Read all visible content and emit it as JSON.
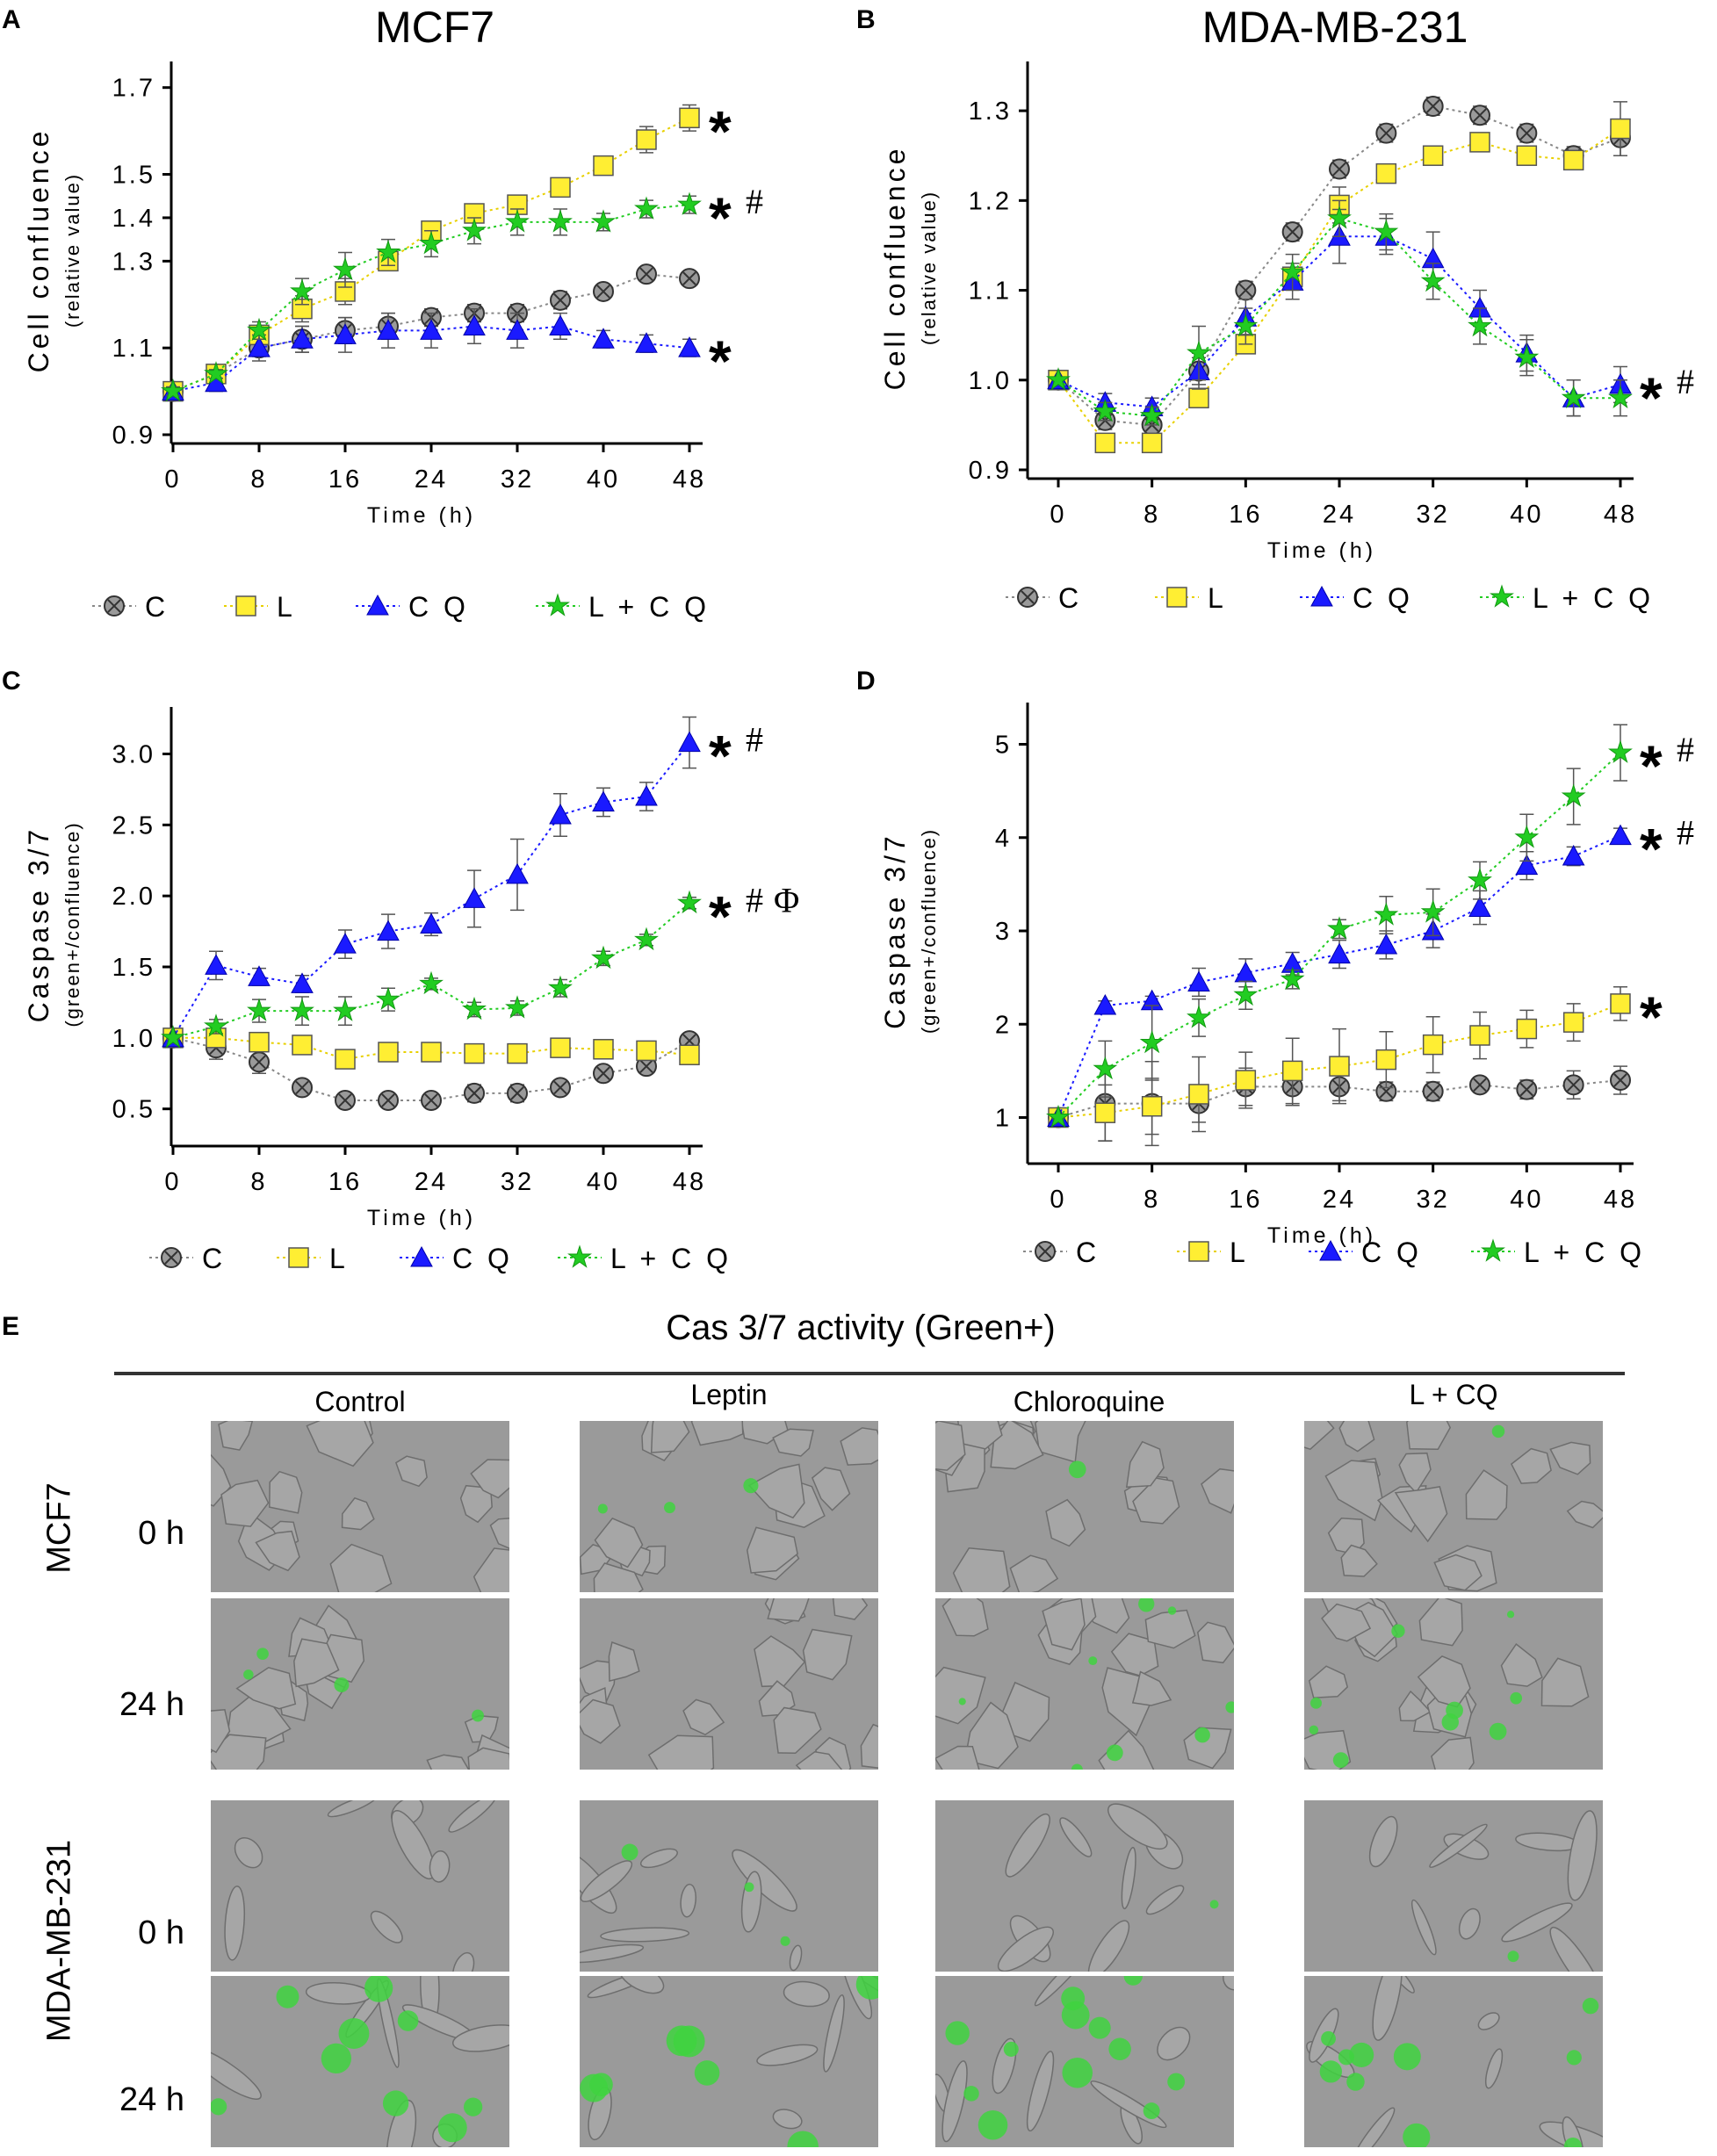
{
  "chart_data": [
    {
      "panel": "A",
      "type": "line",
      "title": "MCF7",
      "ylabel": "Cell confluence",
      "ylabel_sub": "(relative value)",
      "xlabel": "Time (h)",
      "xlim": [
        0,
        48
      ],
      "ylim": [
        0.9,
        1.75
      ],
      "xticks": [
        0,
        8,
        16,
        24,
        32,
        40,
        48
      ],
      "xtick_labels": [
        "0",
        "8",
        "16",
        "24",
        "32",
        "40",
        "48"
      ],
      "yticks": [
        0.9,
        1.1,
        1.3,
        1.4,
        1.5,
        1.7
      ],
      "ytick_labels": [
        "0.9",
        "1.1",
        "1.3",
        "1.4",
        "1.5",
        "1.7"
      ],
      "x": [
        0,
        4,
        8,
        12,
        16,
        20,
        24,
        28,
        32,
        36,
        40,
        44,
        48
      ],
      "series": [
        {
          "name": "C",
          "marker": "circle-x",
          "color": "#888888",
          "values": [
            1.0,
            1.04,
            1.1,
            1.12,
            1.14,
            1.15,
            1.17,
            1.18,
            1.18,
            1.21,
            1.23,
            1.27,
            1.26
          ],
          "err": [
            0.01,
            0.01,
            0.02,
            0.03,
            0.03,
            0.03,
            0.02,
            0.02,
            0.02,
            0.02,
            0.01,
            0.01,
            0.01
          ]
        },
        {
          "name": "L",
          "marker": "square",
          "color": "#ffee33",
          "values": [
            1.0,
            1.04,
            1.13,
            1.19,
            1.23,
            1.3,
            1.37,
            1.41,
            1.43,
            1.47,
            1.52,
            1.58,
            1.63
          ],
          "err": [
            0.01,
            0.01,
            0.02,
            0.03,
            0.03,
            0.02,
            0.02,
            0.01,
            0.01,
            0.01,
            0.02,
            0.03,
            0.03
          ]
        },
        {
          "name": "CQ",
          "marker": "triangle",
          "color": "#1a1aff",
          "values": [
            1.0,
            1.02,
            1.1,
            1.12,
            1.13,
            1.14,
            1.14,
            1.15,
            1.14,
            1.15,
            1.12,
            1.11,
            1.1
          ],
          "err": [
            0.01,
            0.02,
            0.03,
            0.03,
            0.04,
            0.04,
            0.04,
            0.04,
            0.04,
            0.03,
            0.02,
            0.02,
            0.02
          ]
        },
        {
          "name": "L + CQ",
          "marker": "star",
          "color": "#22cc22",
          "values": [
            1.0,
            1.04,
            1.14,
            1.23,
            1.28,
            1.32,
            1.34,
            1.37,
            1.39,
            1.39,
            1.39,
            1.42,
            1.43
          ],
          "err": [
            0.01,
            0.01,
            0.02,
            0.03,
            0.04,
            0.03,
            0.03,
            0.03,
            0.03,
            0.03,
            0.02,
            0.02,
            0.02
          ]
        }
      ],
      "annotations": [
        {
          "text": "*",
          "near_series": "L"
        },
        {
          "text": "* #",
          "near_series": "L + CQ"
        },
        {
          "text": "*",
          "near_series": "CQ"
        }
      ]
    },
    {
      "panel": "B",
      "type": "line",
      "title": "MDA-MB-231",
      "ylabel": "Cell confluence",
      "ylabel_sub": "(relative value)",
      "xlabel": "Time (h)",
      "xlim": [
        0,
        48
      ],
      "ylim": [
        0.9,
        1.35
      ],
      "xticks": [
        0,
        8,
        16,
        24,
        32,
        40,
        48
      ],
      "xtick_labels": [
        "0",
        "8",
        "16",
        "24",
        "32",
        "40",
        "48"
      ],
      "yticks": [
        0.9,
        1.0,
        1.1,
        1.2,
        1.3
      ],
      "ytick_labels": [
        "0.9",
        "1.0",
        "1.1",
        "1.2",
        "1.3"
      ],
      "x": [
        0,
        4,
        8,
        12,
        16,
        20,
        24,
        28,
        32,
        36,
        40,
        44,
        48
      ],
      "series": [
        {
          "name": "C",
          "marker": "circle-x",
          "color": "#888888",
          "values": [
            1.0,
            0.955,
            0.95,
            1.01,
            1.1,
            1.165,
            1.235,
            1.275,
            1.305,
            1.295,
            1.275,
            1.25,
            1.27
          ],
          "err": [
            0.005,
            0.01,
            0.01,
            0.015,
            0.01,
            0.01,
            0.01,
            0.01,
            0.01,
            0.01,
            0.01,
            0.01,
            0.02
          ]
        },
        {
          "name": "L",
          "marker": "square",
          "color": "#ffee33",
          "values": [
            1.0,
            0.93,
            0.93,
            0.98,
            1.04,
            1.115,
            1.195,
            1.23,
            1.25,
            1.265,
            1.25,
            1.245,
            1.28
          ],
          "err": [
            0.005,
            0.01,
            0.01,
            0.01,
            0.01,
            0.01,
            0.02,
            0.01,
            0.01,
            0.01,
            0.01,
            0.01,
            0.03
          ]
        },
        {
          "name": "CQ",
          "marker": "triangle",
          "color": "#1a1aff",
          "values": [
            1.0,
            0.975,
            0.97,
            1.01,
            1.07,
            1.11,
            1.16,
            1.16,
            1.135,
            1.08,
            1.03,
            0.98,
            0.995
          ],
          "err": [
            0.005,
            0.01,
            0.01,
            0.02,
            0.02,
            0.02,
            0.03,
            0.02,
            0.03,
            0.02,
            0.02,
            0.02,
            0.02
          ]
        },
        {
          "name": "L + CQ",
          "marker": "star",
          "color": "#22cc22",
          "values": [
            1.0,
            0.965,
            0.96,
            1.03,
            1.06,
            1.12,
            1.18,
            1.165,
            1.11,
            1.06,
            1.025,
            0.98,
            0.98
          ],
          "err": [
            0.005,
            0.01,
            0.01,
            0.03,
            0.02,
            0.02,
            0.02,
            0.02,
            0.02,
            0.02,
            0.02,
            0.02,
            0.02
          ]
        }
      ],
      "annotations": [
        {
          "text": "* #",
          "near_series": "CQ"
        }
      ]
    },
    {
      "panel": "C",
      "type": "line",
      "title": "",
      "ylabel": "Caspase 3/7",
      "ylabel_sub": "(green+/confluence)",
      "xlabel": "Time (h)",
      "xlim": [
        0,
        48
      ],
      "ylim": [
        0.3,
        3.3
      ],
      "xticks": [
        0,
        8,
        16,
        24,
        32,
        40,
        48
      ],
      "xtick_labels": [
        "0",
        "8",
        "16",
        "24",
        "32",
        "40",
        "48"
      ],
      "yticks": [
        0.5,
        1.0,
        1.5,
        2.0,
        2.5,
        3.0
      ],
      "ytick_labels": [
        "0.5",
        "1.0",
        "1.5",
        "2.0",
        "2.5",
        "3.0"
      ],
      "x": [
        0,
        4,
        8,
        12,
        16,
        20,
        24,
        28,
        32,
        36,
        40,
        44,
        48
      ],
      "series": [
        {
          "name": "C",
          "marker": "circle-x",
          "color": "#888888",
          "values": [
            1.0,
            0.93,
            0.83,
            0.65,
            0.56,
            0.56,
            0.56,
            0.61,
            0.61,
            0.65,
            0.75,
            0.8,
            0.98
          ],
          "err": [
            0.01,
            0.08,
            0.08,
            0.05,
            0.03,
            0.03,
            0.04,
            0.06,
            0.06,
            0.04,
            0.03,
            0.03,
            0.05
          ]
        },
        {
          "name": "L",
          "marker": "square",
          "color": "#ffee33",
          "values": [
            1.0,
            1.0,
            0.97,
            0.95,
            0.85,
            0.9,
            0.9,
            0.89,
            0.89,
            0.93,
            0.92,
            0.91,
            0.88
          ],
          "err": [
            0.01,
            0.03,
            0.03,
            0.05,
            0.04,
            0.04,
            0.04,
            0.04,
            0.04,
            0.04,
            0.04,
            0.04,
            0.04
          ]
        },
        {
          "name": "CQ",
          "marker": "triangle",
          "color": "#1a1aff",
          "values": [
            1.0,
            1.51,
            1.43,
            1.38,
            1.66,
            1.75,
            1.8,
            1.98,
            2.15,
            2.57,
            2.66,
            2.7,
            3.08
          ],
          "err": [
            0.01,
            0.1,
            0.06,
            0.06,
            0.1,
            0.12,
            0.08,
            0.2,
            0.25,
            0.15,
            0.1,
            0.1,
            0.18
          ]
        },
        {
          "name": "L + CQ",
          "marker": "star",
          "color": "#22cc22",
          "values": [
            1.0,
            1.08,
            1.19,
            1.19,
            1.19,
            1.27,
            1.38,
            1.2,
            1.21,
            1.35,
            1.56,
            1.69,
            1.95
          ],
          "err": [
            0.01,
            0.05,
            0.08,
            0.1,
            0.1,
            0.08,
            0.04,
            0.05,
            0.05,
            0.06,
            0.05,
            0.04,
            0.04
          ]
        }
      ],
      "annotations": [
        {
          "text": "* #",
          "near_series": "CQ"
        },
        {
          "text": "* # Φ",
          "near_series": "L + CQ"
        }
      ]
    },
    {
      "panel": "D",
      "type": "line",
      "title": "",
      "ylabel": "Caspase 3/7",
      "ylabel_sub": "(green+/confluence)",
      "xlabel": "Time (h)",
      "xlim": [
        0,
        48
      ],
      "ylim": [
        0.6,
        5.4
      ],
      "xticks": [
        0,
        8,
        16,
        24,
        32,
        40,
        48
      ],
      "xtick_labels": [
        "0",
        "8",
        "16",
        "24",
        "32",
        "40",
        "48"
      ],
      "yticks": [
        1,
        2,
        3,
        4,
        5
      ],
      "ytick_labels": [
        "1",
        "2",
        "3",
        "4",
        "5"
      ],
      "x": [
        0,
        4,
        8,
        12,
        16,
        20,
        24,
        28,
        32,
        36,
        40,
        44,
        48
      ],
      "series": [
        {
          "name": "C",
          "marker": "circle-x",
          "color": "#888888",
          "values": [
            1.0,
            1.15,
            1.15,
            1.15,
            1.33,
            1.33,
            1.33,
            1.28,
            1.28,
            1.35,
            1.3,
            1.35,
            1.4
          ],
          "err": [
            0.01,
            0.4,
            0.45,
            0.2,
            0.2,
            0.2,
            0.15,
            0.1,
            0.1,
            0.08,
            0.1,
            0.15,
            0.15
          ]
        },
        {
          "name": "L",
          "marker": "square",
          "color": "#ffee33",
          "values": [
            1.0,
            1.05,
            1.12,
            1.25,
            1.4,
            1.5,
            1.55,
            1.62,
            1.78,
            1.88,
            1.95,
            2.02,
            2.22
          ],
          "err": [
            0.01,
            0.3,
            0.3,
            0.4,
            0.3,
            0.35,
            0.4,
            0.3,
            0.3,
            0.25,
            0.2,
            0.2,
            0.18
          ]
        },
        {
          "name": "CQ",
          "marker": "triangle",
          "color": "#1a1aff",
          "values": [
            1.0,
            2.2,
            2.25,
            2.45,
            2.55,
            2.65,
            2.75,
            2.85,
            3.0,
            3.25,
            3.7,
            3.8,
            4.02
          ],
          "err": [
            0.01,
            0.05,
            0.05,
            0.15,
            0.15,
            0.12,
            0.15,
            0.15,
            0.18,
            0.18,
            0.15,
            0.1,
            0.08
          ]
        },
        {
          "name": "L + CQ",
          "marker": "star",
          "color": "#22cc22",
          "values": [
            1.0,
            1.52,
            1.8,
            2.07,
            2.31,
            2.48,
            3.02,
            3.17,
            3.2,
            3.54,
            4.0,
            4.44,
            4.91
          ],
          "err": [
            0.01,
            0.3,
            0.4,
            0.2,
            0.15,
            0.1,
            0.1,
            0.2,
            0.25,
            0.2,
            0.25,
            0.3,
            0.3
          ]
        }
      ],
      "annotations": [
        {
          "text": "* #",
          "near_series": "L + CQ"
        },
        {
          "text": "* #",
          "near_series": "CQ"
        },
        {
          "text": "*",
          "near_series": "L"
        }
      ]
    }
  ],
  "panel_labels": [
    "A",
    "B",
    "C",
    "D",
    "E"
  ],
  "legend": {
    "items": [
      "C",
      "L",
      "CQ",
      "L + CQ"
    ],
    "text_items": [
      "C",
      "L",
      "C Q",
      "L + C Q"
    ]
  },
  "image_panel": {
    "label": "E",
    "title": "Cas 3/7 activity (Green+)",
    "columns": [
      "Control",
      "Leptin",
      "Chloroquine",
      "L + CQ"
    ],
    "groups": [
      {
        "name": "MCF7",
        "rows": [
          "0 h",
          "24 h"
        ]
      },
      {
        "name": "MDA-MB-231",
        "rows": [
          "0 h",
          "24 h"
        ]
      }
    ]
  },
  "colors": {
    "C": "#888888",
    "L": "#ffee33",
    "CQ": "#1a1aff",
    "LCQ": "#22cc22",
    "axis": "#000000"
  }
}
